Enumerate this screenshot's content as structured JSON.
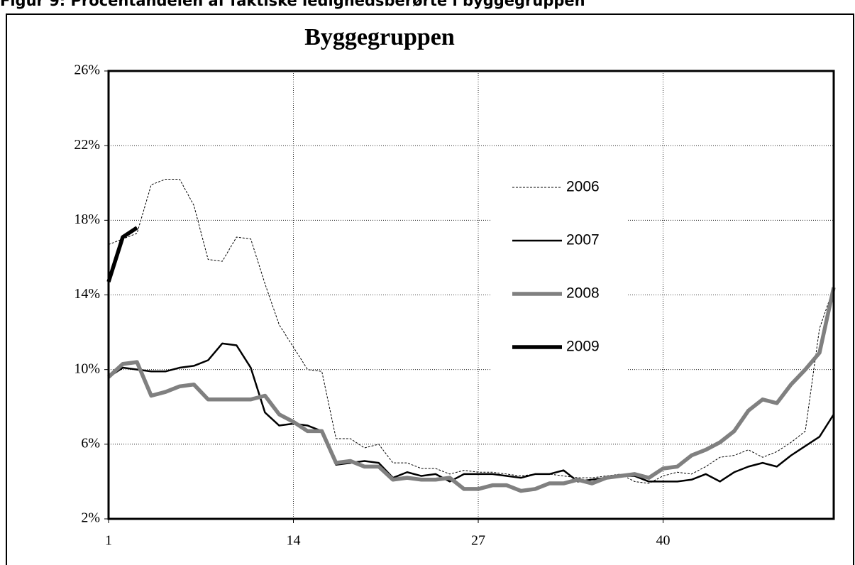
{
  "chart_data": {
    "type": "line",
    "caption": "Figur 9: Procentandelen af faktiske ledighedsberørte i byggegruppen",
    "title": "Byggegruppen",
    "x": [
      1,
      2,
      3,
      4,
      5,
      6,
      7,
      8,
      9,
      10,
      11,
      12,
      13,
      14,
      15,
      16,
      17,
      18,
      19,
      20,
      21,
      22,
      23,
      24,
      25,
      26,
      27,
      28,
      29,
      30,
      31,
      32,
      33,
      34,
      35,
      36,
      37,
      38,
      39,
      40,
      41,
      42,
      43,
      44,
      45,
      46,
      47,
      48,
      49,
      50,
      51,
      52
    ],
    "xlim": [
      1,
      52
    ],
    "xticks": [
      1,
      14,
      27,
      40
    ],
    "ylim": [
      2,
      26
    ],
    "yticks": [
      {
        "value": 2,
        "label": "2%"
      },
      {
        "value": 6,
        "label": "6%"
      },
      {
        "value": 10,
        "label": "10%"
      },
      {
        "value": 14,
        "label": "14%"
      },
      {
        "value": 18,
        "label": "18%"
      },
      {
        "value": 22,
        "label": "22%"
      },
      {
        "value": 26,
        "label": "26%"
      }
    ],
    "grid": true,
    "series": [
      {
        "name": "2006",
        "color": "#000000",
        "style": "dotted",
        "values": [
          16.7,
          17.0,
          17.3,
          19.9,
          20.2,
          20.2,
          18.8,
          15.9,
          15.8,
          17.1,
          17.0,
          14.6,
          12.4,
          11.2,
          10.0,
          9.9,
          6.3,
          6.3,
          5.8,
          6.0,
          5.0,
          5.0,
          4.7,
          4.7,
          4.4,
          4.6,
          4.5,
          4.5,
          4.4,
          4.3,
          4.4,
          4.4,
          4.3,
          4.2,
          4.2,
          4.3,
          4.4,
          4.0,
          3.9,
          4.3,
          4.5,
          4.4,
          4.8,
          5.3,
          5.4,
          5.7,
          5.3,
          5.6,
          6.1,
          6.7,
          12.2,
          14.4
        ]
      },
      {
        "name": "2007",
        "color": "#000000",
        "style": "thin",
        "values": [
          9.6,
          10.1,
          10.0,
          9.9,
          9.9,
          10.1,
          10.2,
          10.5,
          11.4,
          11.3,
          10.1,
          7.7,
          7.0,
          7.1,
          7.0,
          6.7,
          4.9,
          5.0,
          5.1,
          5.0,
          4.2,
          4.5,
          4.3,
          4.4,
          4.0,
          4.4,
          4.4,
          4.4,
          4.3,
          4.2,
          4.4,
          4.4,
          4.6,
          4.0,
          4.1,
          4.2,
          4.3,
          4.3,
          4.0,
          4.0,
          4.0,
          4.1,
          4.4,
          4.0,
          4.5,
          4.8,
          5.0,
          4.8,
          5.4,
          5.9,
          6.4,
          7.6
        ]
      },
      {
        "name": "2008",
        "color": "#808080",
        "style": "thick",
        "values": [
          9.6,
          10.3,
          10.4,
          8.6,
          8.8,
          9.1,
          9.2,
          8.4,
          8.4,
          8.4,
          8.4,
          8.6,
          7.6,
          7.2,
          6.7,
          6.7,
          5.0,
          5.1,
          4.8,
          4.8,
          4.1,
          4.2,
          4.1,
          4.1,
          4.2,
          3.6,
          3.6,
          3.8,
          3.8,
          3.5,
          3.6,
          3.9,
          3.9,
          4.1,
          3.9,
          4.2,
          4.3,
          4.4,
          4.2,
          4.7,
          4.8,
          5.4,
          5.7,
          6.1,
          6.7,
          7.8,
          8.4,
          8.2,
          9.2,
          10.0,
          10.9,
          14.4
        ]
      },
      {
        "name": "2009",
        "color": "#000000",
        "style": "thick",
        "values": [
          14.7,
          17.1,
          17.6,
          null,
          null,
          null,
          null,
          null,
          null,
          null,
          null,
          null,
          null,
          null,
          null,
          null,
          null,
          null,
          null,
          null,
          null,
          null,
          null,
          null,
          null,
          null,
          null,
          null,
          null,
          null,
          null,
          null,
          null,
          null,
          null,
          null,
          null,
          null,
          null,
          null,
          null,
          null,
          null,
          null,
          null,
          null,
          null,
          null,
          null,
          null,
          null,
          null
        ]
      }
    ]
  }
}
